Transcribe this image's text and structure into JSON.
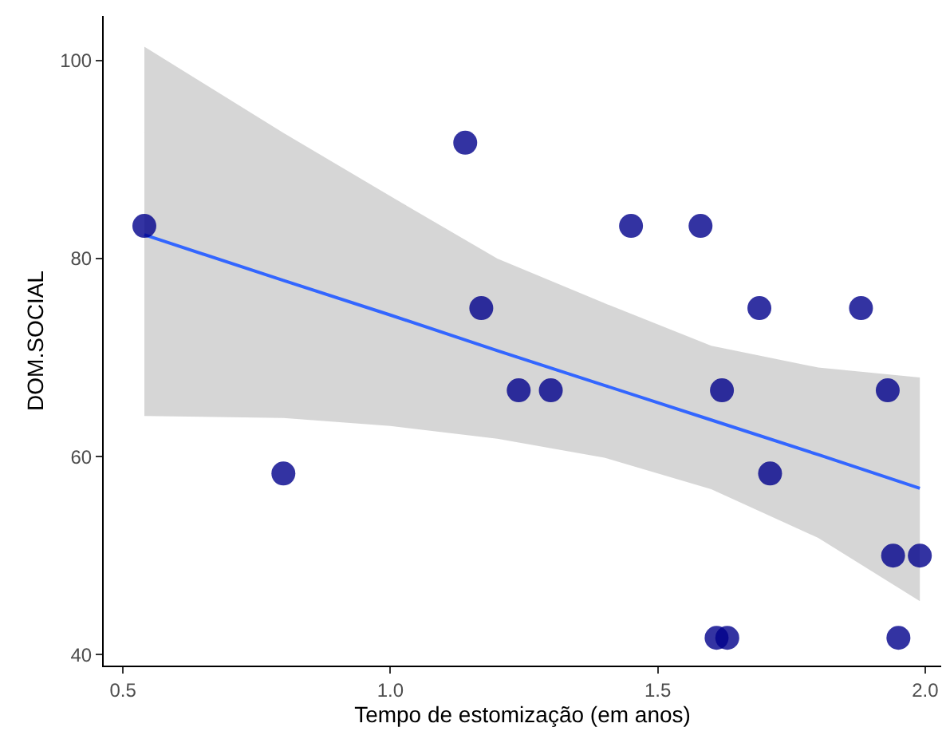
{
  "chart_data": {
    "type": "scatter",
    "xlabel": "Tempo de estomização (em anos)",
    "ylabel": "DOM.SOCIAL",
    "xlim": [
      0.464,
      2.03
    ],
    "ylim": [
      38.9,
      104.5
    ],
    "xticks": [
      {
        "value": 0.5,
        "label": "0.5"
      },
      {
        "value": 1.0,
        "label": "1.0"
      },
      {
        "value": 1.5,
        "label": "1.5"
      },
      {
        "value": 2.0,
        "label": "2.0"
      }
    ],
    "yticks": [
      40,
      60,
      80,
      100
    ],
    "series": [
      {
        "marker": "circle",
        "color": "#00008b",
        "x": [
          0.54,
          0.8,
          1.14,
          1.17,
          1.24,
          1.3,
          1.45,
          1.58,
          1.69,
          1.62,
          1.71,
          1.88,
          1.93,
          1.94,
          1.99,
          1.61,
          1.63,
          1.95
        ],
        "values": [
          83.3,
          58.3,
          91.7,
          75,
          66.7,
          66.7,
          83.3,
          83.3,
          75,
          66.7,
          58.3,
          75,
          66.7,
          50,
          50,
          41.7,
          41.7,
          41.7
        ]
      },
      {
        "type": "line",
        "marker": "none",
        "color": "#3366ff",
        "line_style": "solid",
        "x": [
          0.54,
          0.8,
          1.0,
          1.2,
          1.4,
          1.6,
          1.8,
          1.99
        ],
        "values": [
          82.4,
          77.8,
          74.3,
          70.7,
          67.2,
          63.7,
          60.2,
          56.8
        ],
        "lower": [
          64.1,
          63.9,
          63.1,
          61.8,
          59.9,
          56.7,
          51.8,
          45.4
        ],
        "upper": [
          101.4,
          92.7,
          86.3,
          80.0,
          75.5,
          71.2,
          69.0,
          68.0
        ]
      }
    ]
  }
}
